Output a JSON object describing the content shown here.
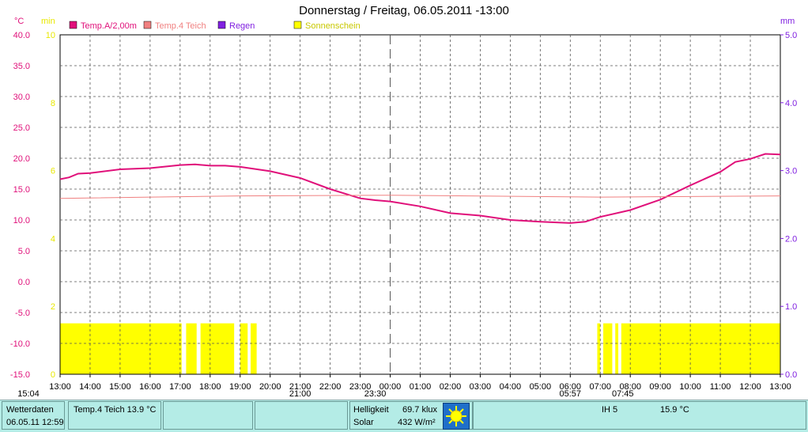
{
  "title": "Donnerstag / Freitag, 06.05.2011  -13:00",
  "colors": {
    "temp_air": "#e0107a",
    "temp_pond": "#f08080",
    "rain": "#8020e0",
    "sunshine": "#ffff00",
    "left_axis": "#e0107a",
    "min_axis": "#e8e800",
    "right_axis": "#8020e0"
  },
  "axis_units": {
    "left": "°C",
    "min": "min",
    "right": "mm"
  },
  "legend": [
    {
      "label": "Temp.A/2,00m",
      "color": "#e0107a"
    },
    {
      "label": "Temp.4 Teich",
      "color": "#f08080"
    },
    {
      "label": "Regen",
      "color": "#8020e0"
    },
    {
      "label": "Sonnenschein",
      "color": "#ffff00"
    }
  ],
  "chart_data": {
    "type": "line",
    "x_tick_labels": [
      "13:00",
      "14:00",
      "15:00",
      "16:00",
      "17:00",
      "18:00",
      "19:00",
      "20:00",
      "21:00",
      "22:00",
      "23:00",
      "00:00",
      "01:00",
      "02:00",
      "03:00",
      "04:00",
      "05:00",
      "06:00",
      "07:00",
      "08:00",
      "09:00",
      "10:00",
      "11:00",
      "12:00",
      "13:00"
    ],
    "y_left": {
      "label": "°C",
      "range": [
        -15,
        40
      ],
      "ticks": [
        "40.0",
        "35.0",
        "30.0",
        "25.0",
        "20.0",
        "15.0",
        "10.0",
        "5.0",
        "0.0",
        "-5.0",
        "-10.0",
        "-15.0"
      ]
    },
    "y_min": {
      "label": "min",
      "range": [
        0,
        10
      ],
      "ticks": [
        "10",
        "8",
        "6",
        "4",
        "2",
        "0"
      ]
    },
    "y_right": {
      "label": "mm",
      "range": [
        0,
        5
      ],
      "ticks": [
        "5.0",
        "4.0",
        "3.0",
        "2.0",
        "1.0",
        "0.0"
      ]
    },
    "grid": true,
    "midnight_marker_hours": 11,
    "series": [
      {
        "name": "Temp.A/2,00m",
        "axis": "left",
        "hours": [
          0,
          0.3,
          0.6,
          1,
          2,
          3,
          4,
          4.5,
          5,
          5.5,
          6,
          7,
          8,
          9,
          10,
          10.5,
          11,
          12,
          13,
          14,
          15,
          16,
          17,
          17.5,
          18,
          19,
          20,
          21,
          22,
          22.5,
          23,
          23.5,
          24
        ],
        "values": [
          16.6,
          16.9,
          17.5,
          17.6,
          18.2,
          18.4,
          18.9,
          19.0,
          18.8,
          18.8,
          18.6,
          17.9,
          16.8,
          15.0,
          13.5,
          13.2,
          13.0,
          12.2,
          11.1,
          10.7,
          10.0,
          9.7,
          9.5,
          9.7,
          10.5,
          11.6,
          13.3,
          15.6,
          17.8,
          19.4,
          19.9,
          20.7,
          20.6
        ]
      },
      {
        "name": "Temp.4 Teich",
        "axis": "left",
        "hours": [
          0,
          6,
          11,
          18,
          24
        ],
        "values": [
          13.5,
          13.9,
          14.0,
          13.7,
          13.9
        ]
      }
    ],
    "sunshine": {
      "name": "Sonnenschein",
      "axis": "min",
      "value": 1.5,
      "intervals": [
        [
          0,
          4.05
        ],
        [
          4.2,
          4.55
        ],
        [
          4.68,
          5.8
        ],
        [
          6.0,
          6.25
        ],
        [
          6.35,
          6.55
        ]
      ]
    },
    "sunshine_2": {
      "value": 1.5,
      "intervals": [
        [
          17.9,
          18.0
        ],
        [
          18.1,
          18.4
        ],
        [
          18.5,
          18.6
        ],
        [
          18.7,
          24
        ]
      ]
    },
    "sun_markers": [
      {
        "label": "15:04",
        "hour": -0.1
      },
      {
        "label": "21:00",
        "hour": 8
      },
      {
        "label": "23:30",
        "hour": 10.5
      },
      {
        "label": "05:57",
        "hour": 17
      },
      {
        "label": "07:45",
        "hour": 18.75
      }
    ]
  },
  "status": {
    "panel1_line1": "Wetterdaten",
    "panel1_line2": "06.05.11 12:59",
    "panel2": "Temp.4 Teich 13.9 °C",
    "helligkeit_label": "Helligkeit",
    "helligkeit_value": "69.7 klux",
    "solar_label": "Solar",
    "solar_value": "432 W/m²",
    "ih": "IH  5",
    "temp": "15.9 °C"
  }
}
